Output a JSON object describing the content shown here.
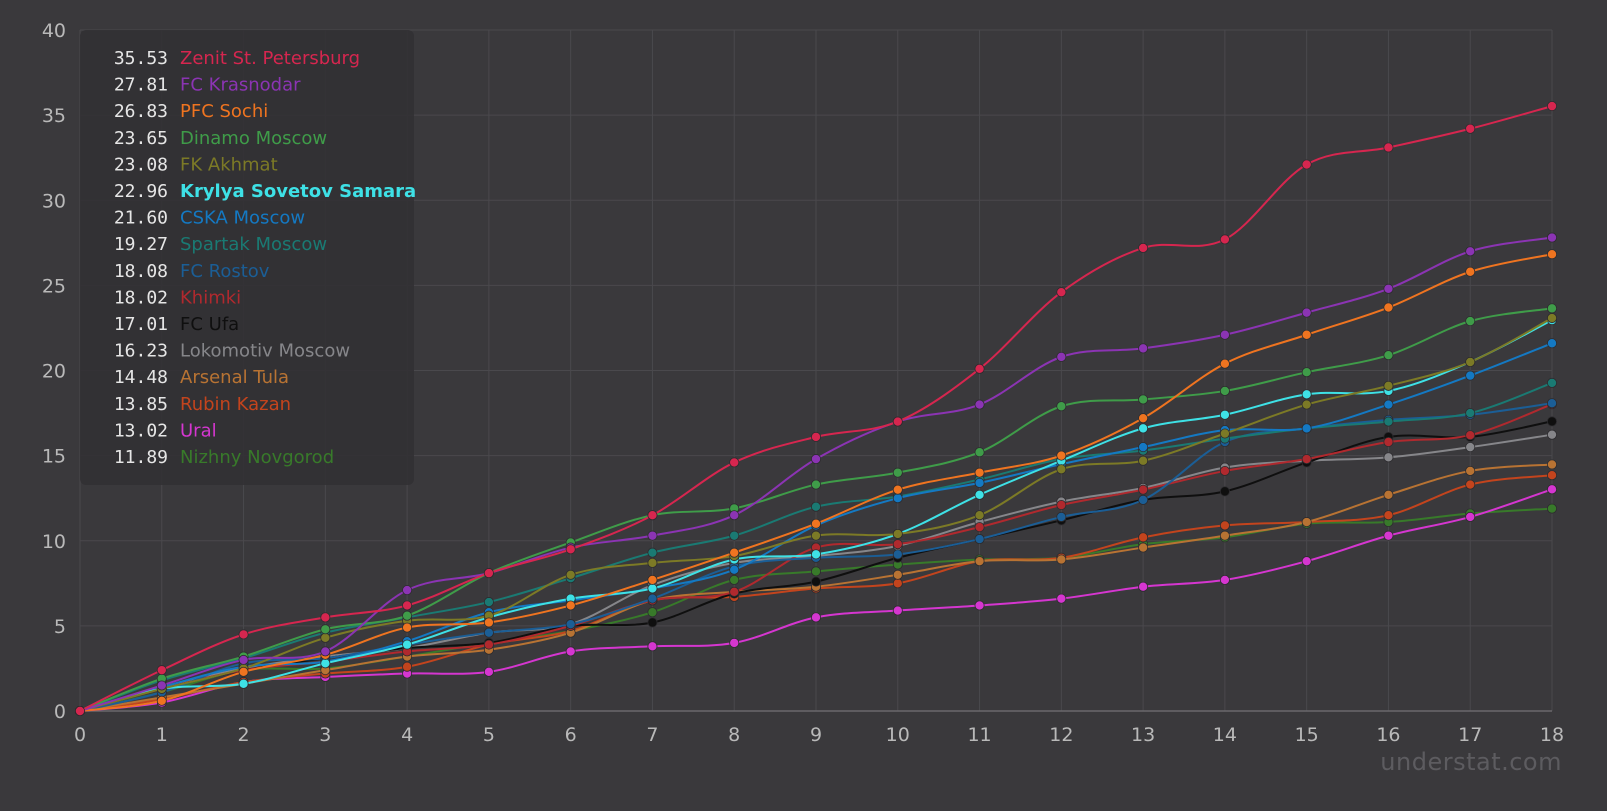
{
  "chart_data": {
    "type": "line",
    "x": [
      0,
      1,
      2,
      3,
      4,
      5,
      6,
      7,
      8,
      9,
      10,
      11,
      12,
      13,
      14,
      15,
      16,
      17,
      18
    ],
    "xlim": [
      0,
      18
    ],
    "ylim": [
      0,
      40
    ],
    "yticks": [
      0,
      5,
      10,
      15,
      20,
      25,
      30,
      35,
      40
    ],
    "grid": true,
    "legend_position": "top-left",
    "watermark": "understat.com",
    "colors": {
      "background": "#3a393c",
      "grid": "#4a494d",
      "legend_box": "#323134",
      "tick_label": "#b9b9b9"
    },
    "series": [
      {
        "name": "Zenit St. Petersburg",
        "label": "35.53",
        "color": "#d6264f",
        "values": [
          0,
          2.4,
          4.5,
          5.5,
          6.2,
          8.1,
          9.5,
          11.5,
          14.6,
          16.1,
          17,
          20.1,
          24.6,
          27.2,
          27.7,
          32.1,
          33.1,
          34.2,
          35.53
        ]
      },
      {
        "name": "FC Krasnodar",
        "label": "27.81",
        "color": "#8b34b3",
        "values": [
          0,
          1.5,
          3,
          3.5,
          7.1,
          8.1,
          9.6,
          10.3,
          11.5,
          14.8,
          17,
          18,
          20.8,
          21.3,
          22.1,
          23.4,
          24.8,
          27,
          27.81
        ]
      },
      {
        "name": "PFC Sochi",
        "label": "26.83",
        "color": "#ef7420",
        "values": [
          0,
          0.6,
          2.3,
          3.3,
          4.9,
          5.2,
          6.2,
          7.7,
          9.3,
          11,
          13,
          14,
          15,
          17.2,
          20.4,
          22.1,
          23.7,
          25.8,
          26.83
        ]
      },
      {
        "name": "Dinamo Moscow",
        "label": "23.65",
        "color": "#3f9c49",
        "values": [
          0,
          1.9,
          3.2,
          4.8,
          5.6,
          8.1,
          9.9,
          11.5,
          11.9,
          13.3,
          14,
          15.2,
          17.9,
          18.3,
          18.8,
          19.9,
          20.9,
          22.9,
          23.65
        ]
      },
      {
        "name": "FK Akhmat",
        "label": "23.08",
        "color": "#7c7a26",
        "values": [
          0,
          1.3,
          2.5,
          4.3,
          5.3,
          5.6,
          8,
          8.7,
          9.1,
          10.3,
          10.4,
          11.5,
          14.2,
          14.7,
          16.3,
          18,
          19.1,
          20.5,
          23.08
        ]
      },
      {
        "name": "Krylya Sovetov Samara",
        "label": "22.96",
        "color": "#3ee1e6",
        "values": [
          0,
          1.3,
          1.6,
          2.8,
          3.9,
          5.5,
          6.6,
          7.2,
          8.9,
          9.2,
          10.4,
          12.7,
          14.7,
          16.6,
          17.4,
          18.6,
          18.8,
          20.5,
          22.96
        ]
      },
      {
        "name": "CSKA Moscow",
        "label": "21.60",
        "color": "#1479c3",
        "values": [
          0,
          1.4,
          2.6,
          2.9,
          4.1,
          5.8,
          6.5,
          7.2,
          8.3,
          10.9,
          12.5,
          13.4,
          14.5,
          15.5,
          16.5,
          16.6,
          18,
          19.7,
          21.6
        ]
      },
      {
        "name": "Spartak Moscow",
        "label": "19.27",
        "color": "#1a7a73",
        "values": [
          0,
          1.8,
          3.1,
          4.6,
          5.5,
          6.4,
          7.8,
          9.3,
          10.3,
          12,
          12.6,
          13.6,
          14.8,
          15.3,
          16,
          16.6,
          17,
          17.5,
          19.27
        ]
      },
      {
        "name": "FC Rostov",
        "label": "18.08",
        "color": "#1b5e96",
        "values": [
          0,
          1.1,
          2.8,
          3.1,
          3.9,
          4.6,
          5.1,
          6.6,
          8.5,
          9,
          9.2,
          10.1,
          11.4,
          12.4,
          15.8,
          16.6,
          17.1,
          17.4,
          18.08
        ]
      },
      {
        "name": "Khimki",
        "label": "18.02",
        "color": "#b0292e",
        "values": [
          0,
          1.3,
          2.4,
          2.9,
          3.5,
          3.9,
          5,
          6.5,
          7,
          9.6,
          9.8,
          10.8,
          12.1,
          13,
          14.1,
          14.8,
          15.8,
          16.2,
          18.02
        ]
      },
      {
        "name": "FC Ufa",
        "label": "17.01",
        "color": "#0f0f0f",
        "values": [
          0,
          1.3,
          2.4,
          3.1,
          3.7,
          4,
          5,
          5.2,
          6.9,
          7.6,
          9,
          10.1,
          11.2,
          12.4,
          12.9,
          14.6,
          16.1,
          16.1,
          17.01
        ]
      },
      {
        "name": "Lokomotiv Moscow",
        "label": "16.23",
        "color": "#86868a",
        "values": [
          0,
          1.4,
          2.5,
          3.2,
          3.7,
          4.6,
          5.1,
          7.4,
          8.7,
          9.1,
          9.7,
          11.1,
          12.3,
          13.1,
          14.3,
          14.7,
          14.9,
          15.5,
          16.23
        ]
      },
      {
        "name": "Arsenal Tula",
        "label": "14.48",
        "color": "#b87333",
        "values": [
          0,
          0.8,
          1.6,
          2.4,
          3.2,
          3.6,
          4.6,
          6.5,
          7,
          7.3,
          8,
          8.8,
          8.9,
          9.6,
          10.3,
          11.1,
          12.7,
          14.1,
          14.48
        ]
      },
      {
        "name": "Rubin Kazan",
        "label": "13.85",
        "color": "#c3441d",
        "values": [
          0,
          0.7,
          1.7,
          2.2,
          2.6,
          3.9,
          4.7,
          6.5,
          6.7,
          7.2,
          7.5,
          8.8,
          9,
          10.2,
          10.9,
          11.1,
          11.5,
          13.3,
          13.85
        ]
      },
      {
        "name": "Ural",
        "label": "13.02",
        "color": "#d536d0",
        "values": [
          0,
          0.5,
          1.7,
          2,
          2.2,
          2.3,
          3.5,
          3.8,
          4,
          5.5,
          5.9,
          6.2,
          6.6,
          7.3,
          7.7,
          8.8,
          10.3,
          11.4,
          13.02
        ]
      },
      {
        "name": "Nizhny Novgorod",
        "label": "11.89",
        "color": "#387a2a",
        "values": [
          0,
          1.1,
          2.4,
          2.5,
          3.2,
          4,
          4.7,
          5.8,
          7.7,
          8.2,
          8.6,
          8.9,
          9,
          9.8,
          10.2,
          11,
          11.1,
          11.6,
          11.89
        ]
      }
    ]
  }
}
